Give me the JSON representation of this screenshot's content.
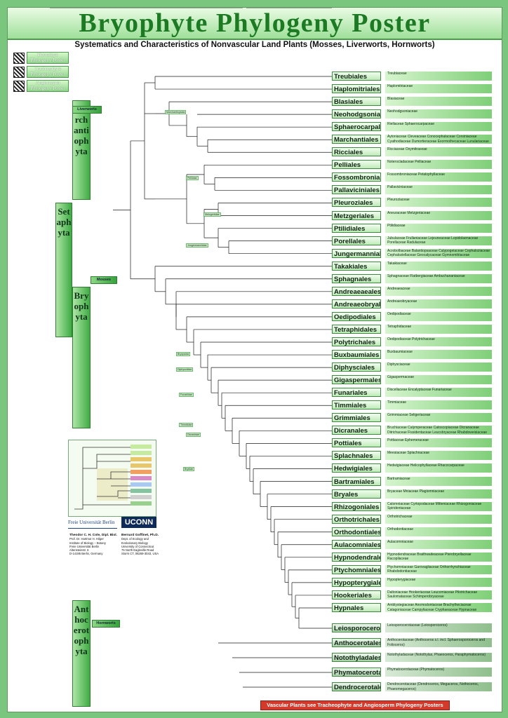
{
  "header": {
    "title": "Bryophyte Phylogeny Poster",
    "subtitle": "Systematics and Characteristics of Nonvascular Land Plants (Mosses, Liverworts, Hornworts)"
  },
  "links": [
    {
      "label": "Bryophyte Phylogeny Poster"
    },
    {
      "label": "Tracheophyte Phylogeny Poster"
    },
    {
      "label": "Angiosperm Phylogeny Poster"
    }
  ],
  "phyla": {
    "marchantiophyta": "Marchantiophyta",
    "setaphyta": "Setaphyta",
    "bryophyta": "Bryophyta",
    "anthocerotophyta": "Anthocerotophyta"
  },
  "group_tabs": {
    "liverworts": "Liverworts",
    "mosses": "Mosses",
    "hornworts": "Hornworts"
  },
  "orders": [
    {
      "name": "Treubiales",
      "families": "Treubiaceae"
    },
    {
      "name": "Haplomitriales",
      "families": "Haplomitriaceae"
    },
    {
      "name": "Blasiales",
      "families": "Blasiaceae"
    },
    {
      "name": "Neohodgsoniales",
      "families": "Neohodgsoniaceae"
    },
    {
      "name": "Sphaerocarpales",
      "families": "Riellaceae  Sphaerocarpaceae"
    },
    {
      "name": "Marchantiales",
      "families": "Aytoniaceae  Cleveaceae  Conocephalaceae  Corsiniaceae  Cyathodiaceae  Dumortieraceae  Exormothecaceae  Lunulariaceae  Marchantiaceae  Monosoleniaceae  Targioniaceae"
    },
    {
      "name": "Ricciales",
      "families": "Ricciaceae  Oxymitraceae"
    },
    {
      "name": "Pelliales",
      "families": "Noterocladaceae  Pelliaceae"
    },
    {
      "name": "Fossombroniales",
      "families": "Fossombroniaceae  Petalophyllaceae"
    },
    {
      "name": "Pallaviciniales",
      "families": "Pallaviciniaceae"
    },
    {
      "name": "Pleuroziales",
      "families": "Pleuroziaceae"
    },
    {
      "name": "Metzgeriales",
      "families": "Aneuraceae  Metzgeriaceae"
    },
    {
      "name": "Ptilidiales",
      "families": "Ptilidiaceae"
    },
    {
      "name": "Porellales",
      "families": "Jubulaceae  Frullaniaceae  Lejeuneaceae  Lepidolaenaceae  Porellaceae  Radulaceae"
    },
    {
      "name": "Jungermanniales",
      "families": "Acrobolbaceae  Balantiopsaceae  Calypogeiaceae  Cephaloziaceae  Cephaloziellaceae  Geocalycaceae  Gymnomitriaceae  Jungermanniaceae  Lepidoziaceae  Lophocoleaceae  Scapaniaceae  Trichocoleaceae"
    },
    {
      "name": "Takakiales",
      "families": "Takakiaceae"
    },
    {
      "name": "Sphagnales",
      "families": "Sphagnaceae  Flatbergiaceae  Ambuchananiaceae"
    },
    {
      "name": "Andreaeaeales",
      "families": "Andreaeaceae"
    },
    {
      "name": "Andreaeobryales",
      "families": "Andreaeobryaceae"
    },
    {
      "name": "Oedipodiales",
      "families": "Oedipodiaceae"
    },
    {
      "name": "Tetraphidales",
      "families": "Tetraphidaceae"
    },
    {
      "name": "Polytrichales",
      "families": "Oedipodiaceae  Polytrichaceae"
    },
    {
      "name": "Buxbaumiales",
      "families": "Buxbaumiaceae"
    },
    {
      "name": "Diphysciales",
      "families": "Diphysciaceae"
    },
    {
      "name": "Gigaspermales",
      "families": "Gigaspermaceae"
    },
    {
      "name": "Funariales",
      "families": "Disceliaceae  Encalyptaceae  Funariaceae"
    },
    {
      "name": "Timmiales",
      "families": "Timmiaceae"
    },
    {
      "name": "Grimmiales",
      "families": "Grimmiaceae  Seligeriaceae"
    },
    {
      "name": "Dicranales",
      "families": "Bruchiaceae  Calymperaceae  Catoscopiaceae  Dicranaceae  Ditrichaceae  Fissidentaceae  Leucobryaceae  Rhabdoweisiaceae"
    },
    {
      "name": "Pottiales",
      "families": "Pottiaceae  Ephemeraceae"
    },
    {
      "name": "Splachnales",
      "families": "Meesiaceae  Splachnaceae"
    },
    {
      "name": "Hedwigiales",
      "families": "Hedwigiaceae  Helicophyllaceae  Rhacocarpaceae"
    },
    {
      "name": "Bartramiales",
      "families": "Bartramiaceae"
    },
    {
      "name": "Bryales",
      "families": "Bryaceae  Mniaceae  Plagiomniaceae"
    },
    {
      "name": "Rhizogoniales",
      "families": "Calomniaceae  Cyrtopodaceae  Mitteniaceae  Rhizogoniaceae  Spiridentaceae"
    },
    {
      "name": "Orthotrichales",
      "families": "Orthotrichaceae"
    },
    {
      "name": "Orthodontiales",
      "families": "Orthodontiaceae"
    },
    {
      "name": "Aulacomniales",
      "families": "Aulacomniaceae"
    },
    {
      "name": "Hypnodendrales",
      "families": "Hypnodendraceae  Braithwaiteaceae  Pterobryellaceae  Racopilaceae"
    },
    {
      "name": "Ptychomniales",
      "families": "Ptychomniaceae  Garovagliaceae  Orthorrhynchiaceae  Rhabdodontiaceae"
    },
    {
      "name": "Hypopterygiales",
      "families": "Hypopterygiaceae"
    },
    {
      "name": "Hookeriales",
      "families": "Daltoniaceae  Hookeriaceae  Leucomiaceae  Pilotrichaceae  Saulomataceae  Schimperobryaceae"
    },
    {
      "name": "Hypnales",
      "families": "Amblystegiaceae  Anomodontaceae  Brachytheciaceae  Catagoniaceae  Campyliaceae  Cryphaeaceae  Hypnaceae  Hylocomiaceae  Lembophyllaceae  Leskeaceae  Meteoriaceae  Myuriaceae  Neckeraceae  Plagiotheciaceae  Pterobryaceae  Pylaisiadelphaceae  Sematophyllaceae  Thuidiaceae  Trachyloma­ceae"
    },
    {
      "name": "Leiosporocerotales",
      "families": "Leiosporocerotaceae (Leiosporoceros)",
      "horn": true
    },
    {
      "name": "Anthocerotales",
      "families": "Anthocerotaceae (Anthoceros s.l. incl. Sphaerosporoceros and Folioceros)",
      "horn": true
    },
    {
      "name": "Notothyladales",
      "families": "Notothyladaceae (Notothylas, Phaeoceros, Paraphymatoceros)",
      "horn": true
    },
    {
      "name": "Phymatocerotales",
      "families": "Phymatocerotaceae (Phymatoceros)",
      "horn": true
    },
    {
      "name": "Dendrocerotales",
      "families": "Dendrocerotaceae (Dendroceros, Megaceros, Nothoceros, Phaeomegaceros)",
      "horn": true
    }
  ],
  "clade_labels": [
    {
      "text": "Marchantiopsida"
    },
    {
      "text": "Pelliidae"
    },
    {
      "text": "Metzgeriidae"
    },
    {
      "text": "Jungermanniidae"
    },
    {
      "text": "Bryopsida"
    },
    {
      "text": "Diphysciidae"
    },
    {
      "text": "Funariidae"
    },
    {
      "text": "Timmiidae"
    },
    {
      "text": "Dicranidae"
    },
    {
      "text": "Bryidae"
    }
  ],
  "authors": {
    "fu_logo": "Freie Universität Berlin",
    "uconn_logo": "UCONN",
    "left": {
      "name": "Theodor C. H. Cole, Dipl. Biol.",
      "lines": [
        "Prof. Dr. Hartmut H. Hilger",
        "Institute of Biology – Botany",
        "Freie Universität Berlin",
        "Altensteinstr. 6",
        "D-14195 Berlin, Germany"
      ]
    },
    "right": {
      "name": "Bernard Goffinet, Ph.D.",
      "lines": [
        "Dept. of Ecology and",
        "Evolutionary Biology",
        "University of Connecticut",
        "75 North Eagleville Road",
        "Storrs CT, 06269-3043, USA"
      ]
    }
  },
  "bottom_banner": "Vascular Plants see Tracheophyte and Angiosperm Phylogeny Posters"
}
